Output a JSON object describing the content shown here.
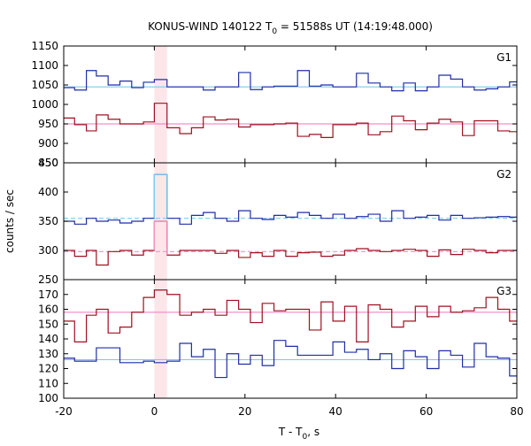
{
  "title": "KONUS-WIND 140122 T",
  "title_sub": "0",
  "title_rest": " = 51588s UT (14:19:48.000)",
  "ylabel": "counts / sec",
  "xlabel_main": "T - T",
  "xlabel_sub": "0",
  "xlabel_rest": ", s",
  "colors": {
    "blue": "#1f2fa8",
    "red": "#a01020",
    "bg_blue": "#77ccee",
    "bg_red": "#f090c8",
    "highlight": "#fde6ea"
  },
  "chart_data": {
    "type": "line",
    "x_range": [
      -20,
      80
    ],
    "x_ticks": [
      -20,
      0,
      20,
      40,
      60,
      80
    ],
    "bin_edges": [
      -20,
      -17.6,
      -15,
      -12.8,
      -10.2,
      -7.6,
      -5,
      -2.4,
      0,
      2.8,
      5.6,
      8.2,
      10.8,
      13.4,
      16,
      18.6,
      21.2,
      23.8,
      26.4,
      29,
      31.6,
      34.2,
      36.8,
      39.4,
      42,
      44.6,
      47.2,
      49.8,
      52.4,
      55,
      57.6,
      60.2,
      62.8,
      65.4,
      68,
      70.6,
      73.2,
      75.8,
      78.4,
      80
    ],
    "highlight_interval": [
      0,
      2.8
    ],
    "panels": [
      {
        "label": "G1",
        "y_range": [
          850,
          1150
        ],
        "y_ticks": [
          850,
          900,
          950,
          1000,
          1050,
          1100,
          1150
        ],
        "series": [
          {
            "color": "blue",
            "values": [
              1043,
              1037,
              1087,
              1073,
              1050,
              1060,
              1043,
              1057,
              1064,
              1045,
              1045,
              1045,
              1037,
              1045,
              1045,
              1082,
              1038,
              1045,
              1047,
              1047,
              1087,
              1047,
              1050,
              1045,
              1045,
              1080,
              1055,
              1045,
              1035,
              1055,
              1035,
              1045,
              1075,
              1065,
              1045,
              1037,
              1040,
              1045,
              1058
            ],
            "background": 1045,
            "background_color": "bg_blue"
          },
          {
            "color": "red",
            "values": [
              965,
              948,
              932,
              973,
              962,
              950,
              950,
              955,
              1003,
              940,
              925,
              940,
              968,
              960,
              962,
              942,
              948,
              948,
              950,
              952,
              918,
              923,
              915,
              948,
              948,
              952,
              922,
              930,
              970,
              958,
              935,
              952,
              962,
              955,
              920,
              958,
              958,
              932,
              930
            ],
            "background": 950,
            "background_color": "bg_red"
          }
        ]
      },
      {
        "label": "G2",
        "y_range": [
          250,
          450
        ],
        "y_ticks": [
          250,
          300,
          350,
          400,
          450
        ],
        "series": [
          {
            "color": "blue",
            "values": [
              350,
              345,
              355,
              350,
              352,
              347,
              350,
              355,
              430,
              355,
              345,
              360,
              365,
              355,
              350,
              368,
              355,
              353,
              360,
              357,
              365,
              360,
              355,
              362,
              355,
              358,
              362,
              350,
              368,
              355,
              357,
              360,
              352,
              360,
              355,
              356,
              357,
              358,
              357
            ],
            "background": 355,
            "background_color": "bg_blue"
          },
          {
            "color": "red",
            "values": [
              300,
              290,
              300,
              275,
              298,
              300,
              292,
              300,
              350,
              292,
              300,
              300,
              300,
              295,
              300,
              288,
              296,
              290,
              300,
              290,
              296,
              297,
              290,
              292,
              300,
              303,
              300,
              298,
              300,
              302,
              300,
              290,
              301,
              293,
              302,
              300,
              296,
              300,
              300
            ],
            "background": 298,
            "background_color": "bg_red"
          }
        ]
      },
      {
        "label": "G3",
        "y_range": [
          100,
          180
        ],
        "y_ticks": [
          100,
          110,
          120,
          130,
          140,
          150,
          160,
          170
        ],
        "series": [
          {
            "color": "blue",
            "values": [
              127,
              125,
              125,
              134,
              134,
              124,
              124,
              125,
              124,
              125,
              137,
              128,
              133,
              114,
              130,
              123,
              129,
              122,
              139,
              135,
              129,
              129,
              129,
              138,
              131,
              133,
              126,
              130,
              120,
              132,
              128,
              120,
              132,
              129,
              121,
              137,
              128,
              127,
              115
            ],
            "background": 126,
            "background_color": "bg_blue"
          },
          {
            "color": "red",
            "values": [
              152,
              138,
              156,
              160,
              144,
              148,
              158,
              168,
              173,
              170,
              156,
              158,
              160,
              156,
              166,
              160,
              151,
              164,
              159,
              160,
              160,
              146,
              165,
              152,
              162,
              138,
              163,
              160,
              148,
              152,
              162,
              155,
              162,
              158,
              159,
              161,
              168,
              160,
              152
            ],
            "background": 158,
            "background_color": "bg_red"
          }
        ]
      }
    ]
  }
}
